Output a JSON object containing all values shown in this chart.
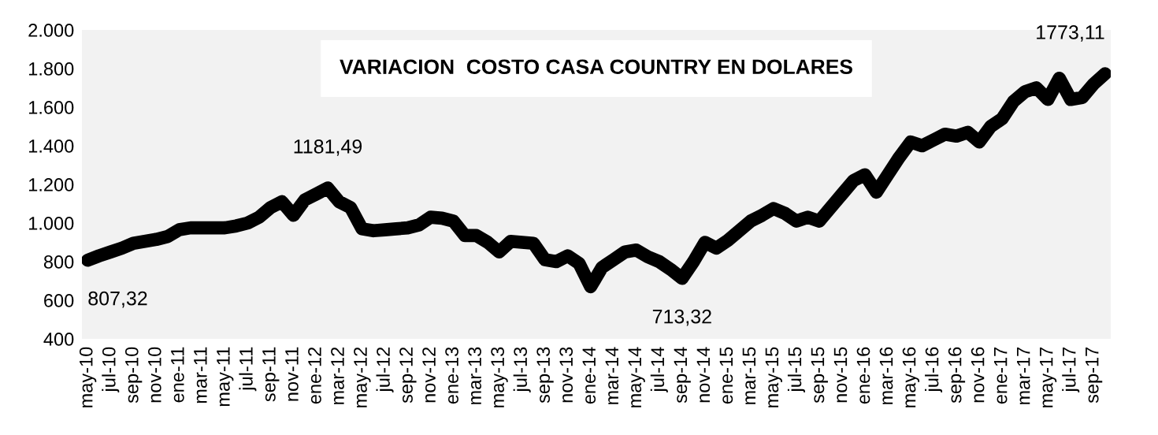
{
  "chart_data": {
    "type": "line",
    "title": "VARIACION  COSTO CASA COUNTRY EN DOLARES",
    "categories": [
      "may-10",
      null,
      "jul-10",
      null,
      "sep-10",
      null,
      "nov-10",
      null,
      "ene-11",
      null,
      "mar-11",
      null,
      "may-11",
      null,
      "jul-11",
      null,
      "sep-11",
      null,
      "nov-11",
      null,
      "ene-12",
      null,
      "mar-12",
      null,
      "may-12",
      null,
      "jul-12",
      null,
      "sep-12",
      null,
      "nov-12",
      null,
      "ene-13",
      null,
      "mar-13",
      null,
      "may-13",
      null,
      "jul-13",
      null,
      "sep-13",
      null,
      "nov-13",
      null,
      "ene-14",
      null,
      "mar-14",
      null,
      "may-14",
      null,
      "jul-14",
      null,
      "sep-14",
      null,
      "nov-14",
      null,
      "ene-15",
      null,
      "mar-15",
      null,
      "may-15",
      null,
      "jul-15",
      null,
      "sep-15",
      null,
      "nov-15",
      null,
      "ene-16",
      null,
      "mar-16",
      null,
      "may-16",
      null,
      "jul-16",
      null,
      "sep-16",
      null,
      "nov-16",
      null,
      "ene-17",
      null,
      "mar-17",
      null,
      "may-17",
      null,
      "jul-17",
      null,
      "sep-17",
      null
    ],
    "series": [
      {
        "color": "#000000",
        "values": [
          807.32,
          830,
          850,
          870,
          895,
          905,
          915,
          930,
          965,
          975,
          975,
          975,
          975,
          985,
          1000,
          1030,
          1080,
          1110,
          1040,
          1120,
          1150,
          1181.49,
          1110,
          1080,
          970,
          960,
          965,
          970,
          975,
          990,
          1030,
          1025,
          1010,
          935,
          935,
          900,
          850,
          905,
          900,
          895,
          810,
          800,
          830,
          790,
          670,
          770,
          810,
          850,
          860,
          825,
          800,
          760,
          713.32,
          800,
          900,
          870,
          910,
          960,
          1010,
          1040,
          1075,
          1050,
          1010,
          1030,
          1010,
          1080,
          1150,
          1220,
          1250,
          1160,
          1250,
          1340,
          1420,
          1400,
          1430,
          1460,
          1450,
          1470,
          1420,
          1500,
          1540,
          1630,
          1680,
          1700,
          1640,
          1750,
          1640,
          1650,
          1720,
          1773.11
        ],
        "value_labels": [
          "807,32",
          null,
          null,
          null,
          null,
          null,
          null,
          null,
          null,
          null,
          null,
          null,
          null,
          null,
          null,
          null,
          null,
          null,
          null,
          null,
          null,
          "1181,49",
          null,
          null,
          null,
          null,
          null,
          null,
          null,
          null,
          null,
          null,
          null,
          null,
          null,
          null,
          null,
          null,
          null,
          null,
          null,
          null,
          null,
          null,
          null,
          null,
          null,
          null,
          null,
          null,
          null,
          null,
          "713,32",
          null,
          null,
          null,
          null,
          null,
          null,
          null,
          null,
          null,
          null,
          null,
          null,
          null,
          null,
          null,
          null,
          null,
          null,
          null,
          null,
          null,
          null,
          null,
          null,
          null,
          null,
          null,
          null,
          null,
          null,
          null,
          null,
          null,
          null,
          null,
          null,
          "1773,11"
        ]
      }
    ],
    "ylim": [
      400,
      2000
    ],
    "yticks": [
      400,
      600,
      800,
      {
        "value": 1000,
        "label": "1.000"
      },
      {
        "value": 1200,
        "label": "1.200"
      },
      {
        "value": 1400,
        "label": "1.400"
      },
      {
        "value": 1600,
        "label": "1.600"
      },
      {
        "value": 1800,
        "label": "1.800"
      },
      {
        "value": 2000,
        "label": "2.000"
      }
    ],
    "grid": false,
    "legend": false,
    "marker": "none",
    "line_style": "solid"
  }
}
